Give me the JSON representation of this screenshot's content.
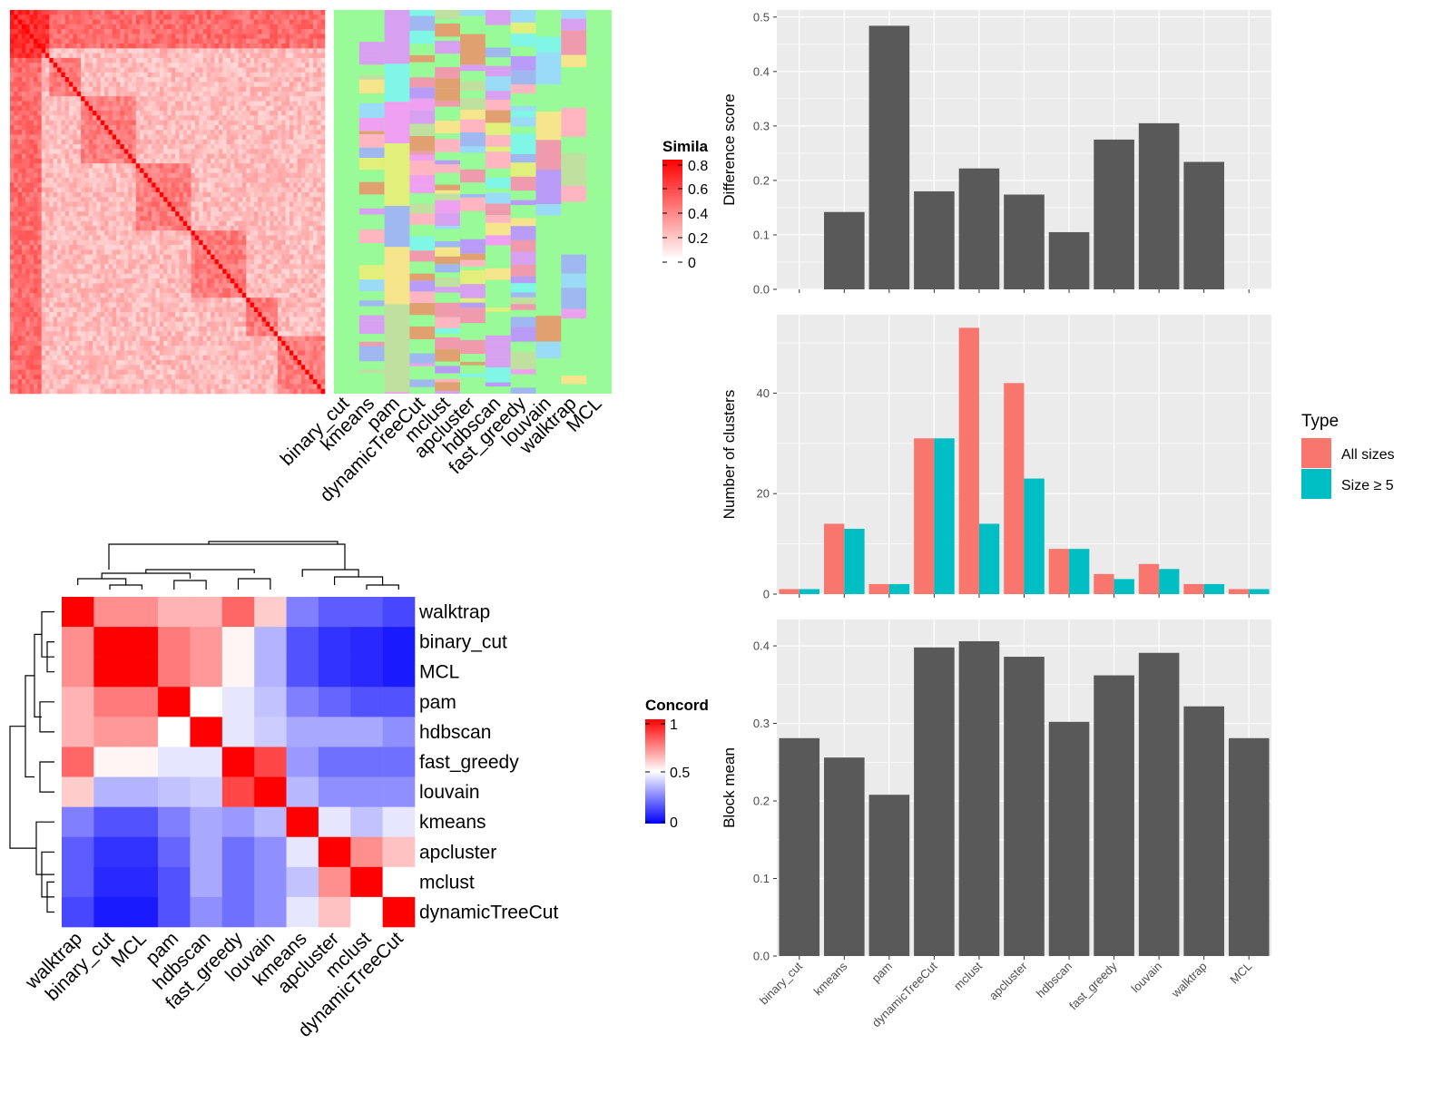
{
  "methods": [
    "binary_cut",
    "kmeans",
    "pam",
    "dynamicTreeCut",
    "mclust",
    "apcluster",
    "hdbscan",
    "fast_greedy",
    "louvain",
    "walktrap",
    "MCL"
  ],
  "similarity_legend": {
    "title": "Similarity",
    "ticks": [
      "0.8",
      "0.6",
      "0.4",
      "0.2",
      "0"
    ]
  },
  "concordance_legend": {
    "title": "Concordance",
    "ticks": [
      "1",
      "0.5",
      "0"
    ]
  },
  "concordance_order": [
    "walktrap",
    "binary_cut",
    "MCL",
    "pam",
    "hdbscan",
    "fast_greedy",
    "louvain",
    "kmeans",
    "apcluster",
    "mclust",
    "dynamicTreeCut"
  ],
  "colors": {
    "panel_bg": "#EBEBEB",
    "grid": "#FFFFFF",
    "bar": "#595959",
    "all_sizes": "#F8766D",
    "size_ge5": "#00BFC4",
    "partition_bg": "#98FB98",
    "heat_high": "#FF0000",
    "conc_low": "#0000FF"
  },
  "chart_data": [
    {
      "type": "heatmap",
      "title": "",
      "legend_title": "Similarity",
      "rows": 240,
      "value_range": [
        0,
        0.8
      ],
      "description": "term similarity matrix"
    },
    {
      "type": "heatmap",
      "title": "",
      "legend_title": "Concordance",
      "row_labels": [
        "walktrap",
        "binary_cut",
        "MCL",
        "pam",
        "hdbscan",
        "fast_greedy",
        "louvain",
        "kmeans",
        "apcluster",
        "mclust",
        "dynamicTreeCut"
      ],
      "col_labels": [
        "walktrap",
        "binary_cut",
        "MCL",
        "pam",
        "hdbscan",
        "fast_greedy",
        "louvain",
        "kmeans",
        "apcluster",
        "mclust",
        "dynamicTreeCut"
      ],
      "values": [
        [
          1.0,
          0.72,
          0.72,
          0.65,
          0.65,
          0.8,
          0.6,
          0.25,
          0.18,
          0.18,
          0.14
        ],
        [
          0.72,
          1.0,
          1.0,
          0.76,
          0.7,
          0.52,
          0.35,
          0.16,
          0.1,
          0.08,
          0.05
        ],
        [
          0.72,
          1.0,
          1.0,
          0.76,
          0.7,
          0.52,
          0.35,
          0.16,
          0.1,
          0.08,
          0.05
        ],
        [
          0.65,
          0.76,
          0.76,
          1.0,
          0.5,
          0.45,
          0.38,
          0.25,
          0.2,
          0.16,
          0.16
        ],
        [
          0.65,
          0.7,
          0.7,
          0.5,
          1.0,
          0.45,
          0.4,
          0.33,
          0.33,
          0.33,
          0.28
        ],
        [
          0.8,
          0.52,
          0.52,
          0.45,
          0.45,
          1.0,
          0.86,
          0.3,
          0.22,
          0.22,
          0.22
        ],
        [
          0.6,
          0.35,
          0.35,
          0.38,
          0.4,
          0.86,
          1.0,
          0.36,
          0.28,
          0.28,
          0.28
        ],
        [
          0.25,
          0.16,
          0.16,
          0.25,
          0.33,
          0.3,
          0.36,
          1.0,
          0.45,
          0.38,
          0.45
        ],
        [
          0.18,
          0.1,
          0.1,
          0.2,
          0.33,
          0.22,
          0.28,
          0.45,
          1.0,
          0.72,
          0.62
        ],
        [
          0.18,
          0.08,
          0.08,
          0.16,
          0.33,
          0.22,
          0.28,
          0.38,
          0.72,
          1.0,
          0.5
        ],
        [
          0.14,
          0.05,
          0.05,
          0.16,
          0.28,
          0.22,
          0.28,
          0.45,
          0.62,
          0.5,
          1.0
        ]
      ],
      "value_range": [
        0,
        1
      ]
    },
    {
      "type": "bar",
      "categories": [
        "binary_cut",
        "kmeans",
        "pam",
        "dynamicTreeCut",
        "mclust",
        "apcluster",
        "hdbscan",
        "fast_greedy",
        "louvain",
        "walktrap",
        "MCL"
      ],
      "values": [
        0,
        0.142,
        0.484,
        0.18,
        0.222,
        0.174,
        0.105,
        0.275,
        0.305,
        0.234,
        0
      ],
      "xlabel": "",
      "ylabel": "Difference score",
      "ylim": [
        0,
        0.5
      ],
      "yticks": [
        0.0,
        0.1,
        0.2,
        0.3,
        0.4,
        0.5
      ],
      "grid": true
    },
    {
      "type": "bar",
      "categories": [
        "binary_cut",
        "kmeans",
        "pam",
        "dynamicTreeCut",
        "mclust",
        "apcluster",
        "hdbscan",
        "fast_greedy",
        "louvain",
        "walktrap",
        "MCL"
      ],
      "series": [
        {
          "name": "All sizes",
          "values": [
            1,
            14,
            2,
            31,
            53,
            42,
            9,
            4,
            6,
            2,
            1
          ]
        },
        {
          "name": "Size ≥ 5",
          "values": [
            1,
            13,
            2,
            31,
            14,
            23,
            9,
            3,
            5,
            2,
            1
          ]
        }
      ],
      "xlabel": "",
      "ylabel": "Number of clusters",
      "ylim": [
        0,
        55
      ],
      "yticks": [
        0,
        20,
        40
      ],
      "legend_title": "Type",
      "legend_position": "right",
      "grid": true
    },
    {
      "type": "bar",
      "categories": [
        "binary_cut",
        "kmeans",
        "pam",
        "dynamicTreeCut",
        "mclust",
        "apcluster",
        "hdbscan",
        "fast_greedy",
        "louvain",
        "walktrap",
        "MCL"
      ],
      "values": [
        0.281,
        0.256,
        0.208,
        0.398,
        0.406,
        0.386,
        0.302,
        0.362,
        0.391,
        0.322,
        0.281
      ],
      "xlabel": "",
      "ylabel": "Block mean",
      "ylim": [
        0,
        0.42
      ],
      "yticks": [
        0.0,
        0.1,
        0.2,
        0.3,
        0.4
      ],
      "grid": true
    }
  ]
}
